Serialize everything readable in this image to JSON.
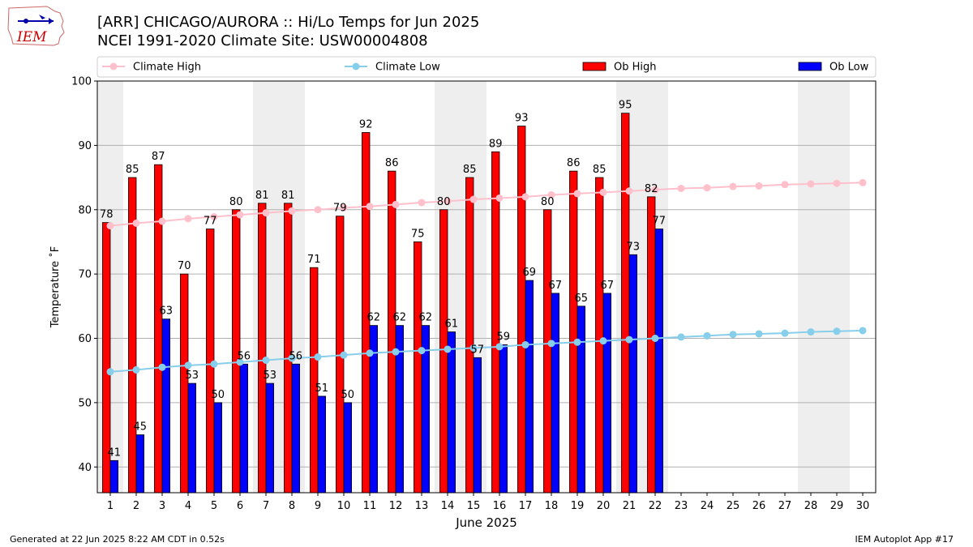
{
  "header": {
    "title_line1": "[ARR] CHICAGO/AURORA :: Hi/Lo Temps for Jun 2025",
    "title_line2": "NCEI 1991-2020 Climate Site: USW00004808"
  },
  "logo": {
    "text": "IEM"
  },
  "footer": {
    "left": "Generated at 22 Jun 2025 8:22 AM CDT in 0.52s",
    "right": "IEM Autoplot App #17"
  },
  "colors": {
    "ob_high": "#ff0000",
    "ob_low": "#0000ff",
    "climate_high": "#ffc0cb",
    "climate_low": "#87ceeb",
    "weekend_shade": "#eeeeee",
    "grid": "#b0b0b0"
  },
  "chart_data": {
    "type": "bar",
    "xlabel": "June 2025",
    "ylabel": "Temperature ˚F",
    "ylim": [
      36,
      100
    ],
    "yticks": [
      40,
      50,
      60,
      70,
      80,
      90,
      100
    ],
    "grid": "horizontal",
    "legend": "top",
    "days": [
      1,
      2,
      3,
      4,
      5,
      6,
      7,
      8,
      9,
      10,
      11,
      12,
      13,
      14,
      15,
      16,
      17,
      18,
      19,
      20,
      21,
      22,
      23,
      24,
      25,
      26,
      27,
      28,
      29,
      30
    ],
    "weekend_days": [
      1,
      7,
      8,
      14,
      15,
      21,
      22,
      28,
      29
    ],
    "series": [
      {
        "name": "Climate High",
        "kind": "line",
        "values": [
          77.5,
          77.9,
          78.2,
          78.6,
          78.9,
          79.2,
          79.5,
          79.8,
          80.0,
          80.3,
          80.5,
          80.8,
          81.1,
          81.3,
          81.6,
          81.8,
          82.0,
          82.3,
          82.5,
          82.7,
          82.9,
          83.1,
          83.3,
          83.4,
          83.6,
          83.7,
          83.9,
          84.0,
          84.1,
          84.2
        ]
      },
      {
        "name": "Climate Low",
        "kind": "line",
        "values": [
          54.8,
          55.1,
          55.5,
          55.8,
          56.0,
          56.3,
          56.6,
          56.9,
          57.1,
          57.4,
          57.7,
          57.9,
          58.1,
          58.3,
          58.5,
          58.7,
          59.0,
          59.2,
          59.4,
          59.6,
          59.8,
          60.0,
          60.2,
          60.4,
          60.6,
          60.7,
          60.8,
          61.0,
          61.1,
          61.2
        ]
      },
      {
        "name": "Ob High",
        "kind": "bar",
        "values": [
          78,
          85,
          87,
          70,
          77,
          80,
          81,
          81,
          71,
          79,
          92,
          86,
          75,
          80,
          85,
          89,
          93,
          80,
          86,
          85,
          95,
          82
        ]
      },
      {
        "name": "Ob Low",
        "kind": "bar",
        "values": [
          41,
          45,
          63,
          53,
          50,
          56,
          53,
          56,
          51,
          50,
          62,
          62,
          62,
          61,
          57,
          59,
          69,
          67,
          65,
          67,
          73,
          77
        ]
      }
    ]
  }
}
